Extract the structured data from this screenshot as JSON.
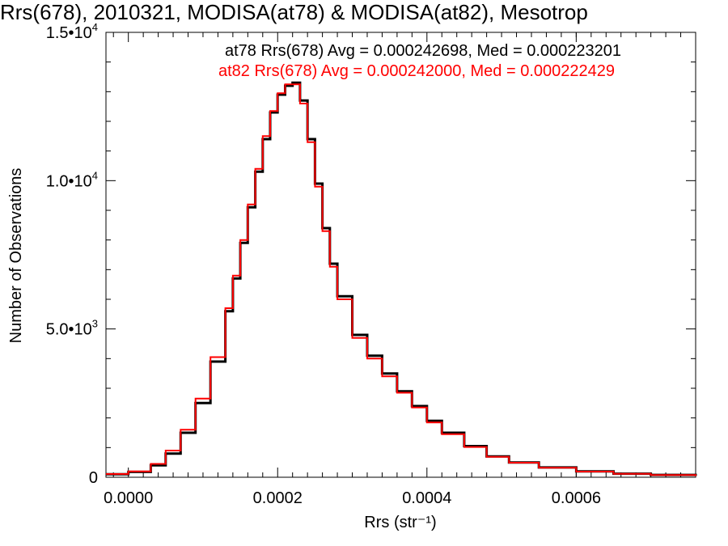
{
  "chart_data": {
    "type": "line",
    "title": "Rrs(678), 2010321, MODISA(at78) & MODISA(at82), Mesotrop",
    "xlabel": "Rrs (str⁻¹)",
    "ylabel": "Number of Observations",
    "xlim": [
      -3e-05,
      0.00076
    ],
    "ylim": [
      0,
      15000
    ],
    "x_ticks": [
      {
        "value": 0.0,
        "label": "0.0000"
      },
      {
        "value": 0.0002,
        "label": "0.0002"
      },
      {
        "value": 0.0004,
        "label": "0.0004"
      },
      {
        "value": 0.0006,
        "label": "0.0006"
      }
    ],
    "y_ticks": [
      {
        "value": 0,
        "mant": "0",
        "exp": ""
      },
      {
        "value": 5000,
        "mant": "5.0•10",
        "exp": "3"
      },
      {
        "value": 10000,
        "mant": "1.0•10",
        "exp": "4"
      },
      {
        "value": 15000,
        "mant": "1.5•10",
        "exp": "4"
      }
    ],
    "grid": false,
    "legend_placement": "top-right",
    "series": [
      {
        "name": "at78",
        "label": "at78 Rrs(678) Avg = 0.000242698, Med = 0.000223201",
        "color": "#000000",
        "x": [
          -3e-05,
          0.0,
          3e-05,
          5e-05,
          7e-05,
          9e-05,
          0.00011,
          0.00013,
          0.00014,
          0.00015,
          0.00016,
          0.00017,
          0.00018,
          0.00019,
          0.0002,
          0.00021,
          0.00022,
          0.00023,
          0.00024,
          0.00025,
          0.00026,
          0.00027,
          0.00028,
          0.0003,
          0.00032,
          0.00034,
          0.00036,
          0.00038,
          0.0004,
          0.00042,
          0.00045,
          0.00048,
          0.00051,
          0.00055,
          0.0006,
          0.00065,
          0.0007,
          0.00076
        ],
        "y": [
          100,
          180,
          400,
          800,
          1500,
          2500,
          3900,
          5600,
          6700,
          7900,
          9100,
          10300,
          11400,
          12300,
          12900,
          13200,
          13300,
          12700,
          11400,
          9900,
          8400,
          7200,
          6100,
          4800,
          4100,
          3500,
          2900,
          2400,
          1900,
          1500,
          1050,
          700,
          500,
          330,
          200,
          120,
          80,
          40
        ]
      },
      {
        "name": "at82",
        "label": "at82 Rrs(678) Avg = 0.000242000, Med = 0.000222429",
        "color": "#ff0000",
        "x": [
          -3e-05,
          0.0,
          3e-05,
          5e-05,
          7e-05,
          9e-05,
          0.00011,
          0.00013,
          0.00014,
          0.00015,
          0.00016,
          0.00017,
          0.00018,
          0.00019,
          0.0002,
          0.00021,
          0.00022,
          0.00023,
          0.00024,
          0.00025,
          0.00026,
          0.00027,
          0.00028,
          0.0003,
          0.00032,
          0.00034,
          0.00036,
          0.00038,
          0.0004,
          0.00042,
          0.00045,
          0.00048,
          0.00051,
          0.00055,
          0.0006,
          0.00065,
          0.0007,
          0.00076
        ],
        "y": [
          110,
          200,
          450,
          900,
          1600,
          2650,
          4050,
          5700,
          6800,
          8000,
          9200,
          10400,
          11500,
          12350,
          12950,
          13250,
          13250,
          12600,
          11300,
          9800,
          8300,
          7100,
          6000,
          4700,
          4000,
          3400,
          2850,
          2350,
          1850,
          1450,
          1020,
          690,
          490,
          320,
          190,
          115,
          75,
          40
        ]
      }
    ]
  }
}
